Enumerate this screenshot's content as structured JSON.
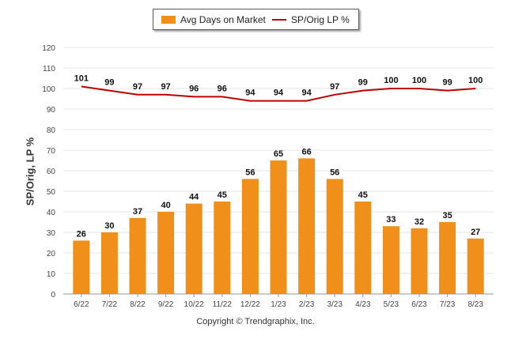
{
  "legend": {
    "bar_label": "Avg Days on Market",
    "line_label": "SP/Orig LP %"
  },
  "copyright": "Copyright © Trendgraphix, Inc.",
  "colors": {
    "bar": "#f0901a",
    "line": "#c00000",
    "grid": "#e6e6e6",
    "text": "#333333"
  },
  "chart_data": {
    "type": "bar",
    "categories": [
      "6/22",
      "7/22",
      "8/22",
      "9/22",
      "10/22",
      "11/22",
      "12/22",
      "1/23",
      "2/23",
      "3/23",
      "4/23",
      "5/23",
      "6/23",
      "7/23",
      "8/23"
    ],
    "series": [
      {
        "name": "Avg Days on Market",
        "type": "bar",
        "values": [
          26,
          30,
          37,
          40,
          44,
          45,
          56,
          65,
          66,
          56,
          45,
          33,
          32,
          35,
          27
        ]
      },
      {
        "name": "SP/Orig LP %",
        "type": "line",
        "values": [
          101,
          99,
          97,
          97,
          96,
          96,
          94,
          94,
          94,
          97,
          99,
          100,
          100,
          99,
          100
        ]
      }
    ],
    "ylabel": "SP/Orig, LP %",
    "ylim": [
      0,
      120
    ],
    "yticks": [
      0,
      10,
      20,
      30,
      40,
      50,
      60,
      70,
      80,
      90,
      100,
      110,
      120
    ],
    "grid": true,
    "legend_position": "top-center"
  }
}
